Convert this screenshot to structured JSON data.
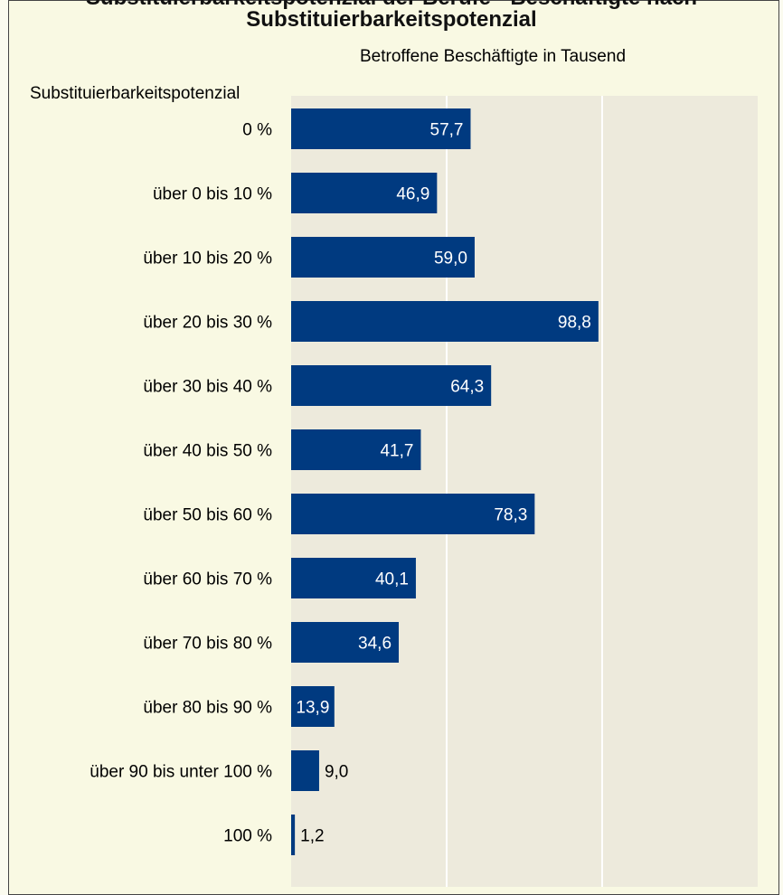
{
  "page_title": "Substituierbarkeitspotenzial der Berufe - Beschäftigte nach Substituierbarkeitspotenzial",
  "colors": {
    "bar": "#003a80",
    "plot_bg": "#edeadc",
    "frame_bg": "#f9f9e3",
    "grid": "#ffffff",
    "label_inside": "#ffffff",
    "label_outside": "#000000"
  },
  "chart_data": {
    "type": "bar",
    "orientation": "horizontal",
    "xlabel": "Betroffene Beschäftigte in Tausend",
    "ylabel": "Substituierbarkeitspotenzial",
    "categories": [
      "0 %",
      "über 0 bis 10 %",
      "über 10 bis 20 %",
      "über 20 bis 30 %",
      "über 30 bis 40 %",
      "über 40 bis 50 %",
      "über 50 bis 60 %",
      "über 60 bis 70 %",
      "über 70 bis 80 %",
      "über 80 bis 90 %",
      "über 90 bis unter 100 %",
      "100 %"
    ],
    "values": [
      57.7,
      46.9,
      59.0,
      98.8,
      64.3,
      41.7,
      78.3,
      40.1,
      34.6,
      13.9,
      9.0,
      1.2
    ],
    "value_labels": [
      "57,7",
      "46,9",
      "59,0",
      "98,8",
      "64,3",
      "41,7",
      "78,3",
      "40,1",
      "34,6",
      "13,9",
      "9,0",
      "1,2"
    ],
    "xlim": [
      0,
      150
    ],
    "gridlines_x": [
      50,
      100
    ],
    "grid": true,
    "legend": false
  }
}
